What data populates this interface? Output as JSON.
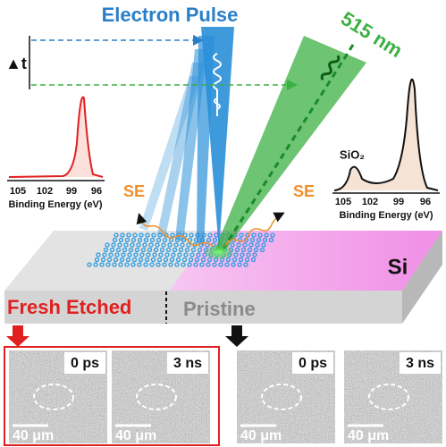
{
  "title": "Electron Pulse",
  "wavelength": "515 nm",
  "delay": "▲t",
  "secondary_electrons": [
    "SE",
    "SE"
  ],
  "spectra": [
    {
      "ticks": [
        105,
        102,
        99,
        96
      ],
      "xlabel": "Binding Energy (eV)"
    },
    {
      "ticks": [
        105,
        102,
        99,
        96
      ],
      "xlabel": "Binding Energy (eV)",
      "peak_label": "SiO₂"
    }
  ],
  "substrate": "Si",
  "regions": [
    {
      "label": "Fresh Etched",
      "images": [
        {
          "time": "0 ps",
          "scale": "40 μm"
        },
        {
          "time": "3 ns",
          "scale": "40 μm"
        }
      ]
    },
    {
      "label": "Pristine",
      "images": [
        {
          "time": "0 ps",
          "scale": "40 μm"
        },
        {
          "time": "3 ns",
          "scale": "40 μm"
        }
      ]
    }
  ]
}
